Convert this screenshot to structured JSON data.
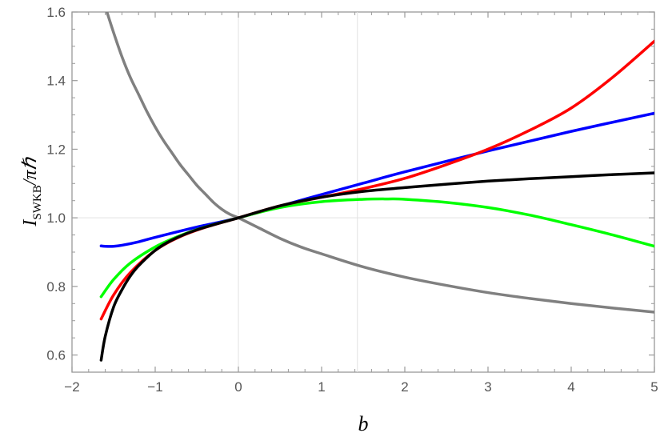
{
  "chart_data": {
    "type": "line",
    "xlabel": "b",
    "ylabel": {
      "main": "I",
      "sub": "SWKB",
      "tail": "/πℏ"
    },
    "xlim": [
      -2,
      5
    ],
    "ylim": [
      0.55,
      1.6
    ],
    "xticks": [
      -2,
      -1,
      0,
      1,
      2,
      3,
      4,
      5
    ],
    "yticks": [
      0.6,
      0.8,
      1.0,
      1.2,
      1.4,
      1.6
    ],
    "xtick_labels": [
      "−2",
      "−1",
      "0",
      "1",
      "2",
      "3",
      "4",
      "5"
    ],
    "ytick_labels": [
      "0.6",
      "0.8",
      "1.0",
      "1.2",
      "1.4",
      "1.6"
    ],
    "vertical_gridlines": [
      0,
      1.43
    ],
    "horizontal_gridlines": [
      1.0
    ],
    "series": [
      {
        "color": "#808080",
        "x": [
          -1.58,
          -1.5,
          -1.4,
          -1.3,
          -1.2,
          -1.1,
          -1.0,
          -0.9,
          -0.8,
          -0.7,
          -0.6,
          -0.5,
          -0.4,
          -0.3,
          -0.2,
          -0.1,
          0,
          0.25,
          0.5,
          0.75,
          1.0,
          1.5,
          2.0,
          2.5,
          3.0,
          3.5,
          4.0,
          4.5,
          5.0
        ],
        "y": [
          1.6,
          1.54,
          1.47,
          1.41,
          1.36,
          1.31,
          1.265,
          1.225,
          1.19,
          1.155,
          1.125,
          1.095,
          1.07,
          1.045,
          1.025,
          1.01,
          1.0,
          0.97,
          0.94,
          0.915,
          0.895,
          0.857,
          0.827,
          0.803,
          0.782,
          0.765,
          0.75,
          0.737,
          0.725
        ]
      },
      {
        "color": "#0000ff",
        "x": [
          -1.65,
          -1.6,
          -1.5,
          -1.4,
          -1.2,
          -1.0,
          -0.5,
          0,
          0.5,
          1.0,
          1.5,
          2.0,
          3.0,
          4.0,
          5.0
        ],
        "y": [
          0.918,
          0.917,
          0.917,
          0.92,
          0.93,
          0.943,
          0.973,
          1.0,
          1.034,
          1.068,
          1.101,
          1.134,
          1.195,
          1.252,
          1.305
        ]
      },
      {
        "color": "#00ff00",
        "x": [
          -1.65,
          -1.5,
          -1.3,
          -1.0,
          -0.7,
          -0.4,
          0,
          0.5,
          1.0,
          1.5,
          1.8,
          2.0,
          2.5,
          3.0,
          3.5,
          4.0,
          4.5,
          5.0
        ],
        "y": [
          0.77,
          0.82,
          0.868,
          0.915,
          0.948,
          0.973,
          1.0,
          1.03,
          1.047,
          1.054,
          1.055,
          1.054,
          1.045,
          1.03,
          1.008,
          0.98,
          0.95,
          0.917
        ]
      },
      {
        "color": "#ff0000",
        "x": [
          -1.65,
          -1.5,
          -1.3,
          -1.0,
          -0.7,
          -0.4,
          0,
          0.5,
          1.0,
          1.5,
          2.0,
          2.5,
          3.0,
          3.5,
          4.0,
          4.5,
          5.0
        ],
        "y": [
          0.705,
          0.775,
          0.84,
          0.905,
          0.945,
          0.972,
          1.0,
          1.035,
          1.06,
          1.085,
          1.115,
          1.155,
          1.2,
          1.255,
          1.32,
          1.41,
          1.515
        ]
      },
      {
        "color": "#000000",
        "x": [
          -1.65,
          -1.6,
          -1.5,
          -1.4,
          -1.3,
          -1.2,
          -1.0,
          -0.8,
          -0.5,
          0,
          0.5,
          1.0,
          1.5,
          2.0,
          2.5,
          3.0,
          3.5,
          4.0,
          4.5,
          5.0
        ],
        "y": [
          0.585,
          0.655,
          0.74,
          0.79,
          0.83,
          0.86,
          0.905,
          0.935,
          0.965,
          1.0,
          1.035,
          1.06,
          1.077,
          1.088,
          1.098,
          1.107,
          1.114,
          1.12,
          1.126,
          1.131
        ]
      }
    ]
  }
}
